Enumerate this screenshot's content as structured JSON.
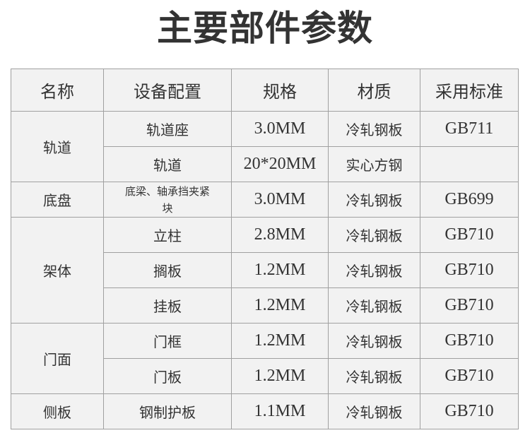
{
  "title": "主要部件参数",
  "headers": [
    "名称",
    "设备配置",
    "规格",
    "材质",
    "采用标准"
  ],
  "groups": [
    {
      "name": "轨道",
      "rows": [
        [
          "轨道座",
          "3.0MM",
          "冷轧钢板",
          "GB711"
        ],
        [
          "轨道",
          "20*20MM",
          "实心方钢",
          ""
        ]
      ]
    },
    {
      "name": "底盘",
      "rows": [
        [
          "底梁、轴承挡夹紧块",
          "3.0MM",
          "冷轧钢板",
          "GB699"
        ]
      ]
    },
    {
      "name": "架体",
      "rows": [
        [
          "立柱",
          "2.8MM",
          "冷轧钢板",
          "GB710"
        ],
        [
          "搁板",
          "1.2MM",
          "冷轧钢板",
          "GB710"
        ],
        [
          "挂板",
          "1.2MM",
          "冷轧钢板",
          "GB710"
        ]
      ]
    },
    {
      "name": "门面",
      "rows": [
        [
          "门框",
          "1.2MM",
          "冷轧钢板",
          "GB710"
        ],
        [
          "门板",
          "1.2MM",
          "冷轧钢板",
          "GB710"
        ]
      ]
    },
    {
      "name": "侧板",
      "rows": [
        [
          "钢制护板",
          "1.1MM",
          "冷轧钢板",
          "GB710"
        ]
      ]
    }
  ]
}
